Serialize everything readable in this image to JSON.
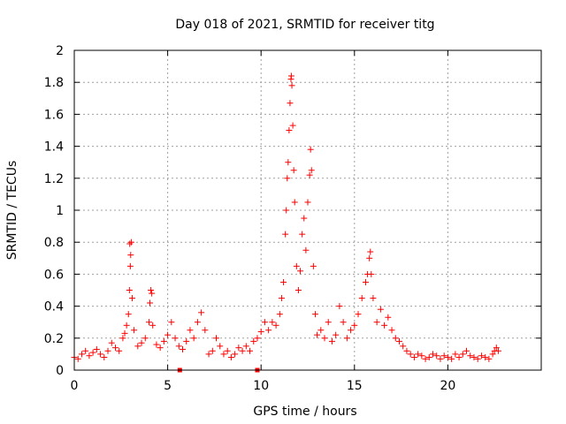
{
  "chart_data": {
    "type": "scatter",
    "title": "Day 018 of 2021, SRMTID for receiver titg",
    "xlabel": "GPS time / hours",
    "ylabel": "SRMTID / TECUs",
    "xlim": [
      0,
      25
    ],
    "ylim": [
      0,
      2
    ],
    "xticks": [
      0,
      5,
      10,
      15,
      20
    ],
    "xtick_labels": [
      "0",
      "5",
      "10",
      "15",
      "20"
    ],
    "yticks": [
      0,
      0.2,
      0.4,
      0.6,
      0.8,
      1,
      1.2,
      1.4,
      1.6,
      1.8,
      2
    ],
    "ytick_labels": [
      "0",
      "0.2",
      "0.4",
      "0.6",
      "0.8",
      "1",
      "1.2",
      "1.4",
      "1.6",
      "1.8",
      "2"
    ],
    "grid": true,
    "marker": "+",
    "color": "#ff0000",
    "baseline_markers_x": [
      5.65,
      9.8
    ],
    "series": [
      {
        "name": "SRMTID",
        "points": [
          [
            0.0,
            0.08
          ],
          [
            0.2,
            0.07
          ],
          [
            0.4,
            0.1
          ],
          [
            0.6,
            0.12
          ],
          [
            0.8,
            0.09
          ],
          [
            1.0,
            0.11
          ],
          [
            1.2,
            0.13
          ],
          [
            1.4,
            0.1
          ],
          [
            1.6,
            0.08
          ],
          [
            1.8,
            0.12
          ],
          [
            2.0,
            0.17
          ],
          [
            2.2,
            0.14
          ],
          [
            2.4,
            0.12
          ],
          [
            2.6,
            0.2
          ],
          [
            2.7,
            0.23
          ],
          [
            2.8,
            0.28
          ],
          [
            2.9,
            0.35
          ],
          [
            2.95,
            0.5
          ],
          [
            3.0,
            0.65
          ],
          [
            3.05,
            0.8
          ],
          [
            2.97,
            0.79
          ],
          [
            3.02,
            0.72
          ],
          [
            3.1,
            0.45
          ],
          [
            3.2,
            0.25
          ],
          [
            3.4,
            0.15
          ],
          [
            3.6,
            0.17
          ],
          [
            3.8,
            0.2
          ],
          [
            4.0,
            0.3
          ],
          [
            4.05,
            0.42
          ],
          [
            4.1,
            0.5
          ],
          [
            4.15,
            0.48
          ],
          [
            4.2,
            0.28
          ],
          [
            4.4,
            0.16
          ],
          [
            4.6,
            0.14
          ],
          [
            4.8,
            0.18
          ],
          [
            5.0,
            0.22
          ],
          [
            5.2,
            0.3
          ],
          [
            5.4,
            0.2
          ],
          [
            5.6,
            0.15
          ],
          [
            5.8,
            0.13
          ],
          [
            6.0,
            0.18
          ],
          [
            6.2,
            0.25
          ],
          [
            6.4,
            0.2
          ],
          [
            6.6,
            0.3
          ],
          [
            6.8,
            0.36
          ],
          [
            7.0,
            0.25
          ],
          [
            7.2,
            0.1
          ],
          [
            7.4,
            0.12
          ],
          [
            7.6,
            0.2
          ],
          [
            7.8,
            0.15
          ],
          [
            8.0,
            0.1
          ],
          [
            8.2,
            0.12
          ],
          [
            8.4,
            0.08
          ],
          [
            8.6,
            0.1
          ],
          [
            8.8,
            0.14
          ],
          [
            9.0,
            0.12
          ],
          [
            9.2,
            0.15
          ],
          [
            9.4,
            0.12
          ],
          [
            9.6,
            0.18
          ],
          [
            9.8,
            0.2
          ],
          [
            10.0,
            0.24
          ],
          [
            10.2,
            0.3
          ],
          [
            10.4,
            0.25
          ],
          [
            10.6,
            0.3
          ],
          [
            10.8,
            0.28
          ],
          [
            11.0,
            0.35
          ],
          [
            11.1,
            0.45
          ],
          [
            11.2,
            0.55
          ],
          [
            11.3,
            0.85
          ],
          [
            11.35,
            1.0
          ],
          [
            11.4,
            1.2
          ],
          [
            11.45,
            1.3
          ],
          [
            11.5,
            1.5
          ],
          [
            11.55,
            1.67
          ],
          [
            11.6,
            1.82
          ],
          [
            11.62,
            1.84
          ],
          [
            11.65,
            1.78
          ],
          [
            11.7,
            1.53
          ],
          [
            11.75,
            1.25
          ],
          [
            11.8,
            1.05
          ],
          [
            11.9,
            0.65
          ],
          [
            12.0,
            0.5
          ],
          [
            12.1,
            0.62
          ],
          [
            12.2,
            0.85
          ],
          [
            12.3,
            0.95
          ],
          [
            12.4,
            0.75
          ],
          [
            12.5,
            1.05
          ],
          [
            12.6,
            1.22
          ],
          [
            12.65,
            1.38
          ],
          [
            12.7,
            1.25
          ],
          [
            12.8,
            0.65
          ],
          [
            12.9,
            0.35
          ],
          [
            13.0,
            0.22
          ],
          [
            13.2,
            0.25
          ],
          [
            13.4,
            0.2
          ],
          [
            13.6,
            0.3
          ],
          [
            13.8,
            0.18
          ],
          [
            14.0,
            0.22
          ],
          [
            14.2,
            0.4
          ],
          [
            14.4,
            0.3
          ],
          [
            14.6,
            0.2
          ],
          [
            14.8,
            0.25
          ],
          [
            15.0,
            0.28
          ],
          [
            15.2,
            0.35
          ],
          [
            15.4,
            0.45
          ],
          [
            15.6,
            0.55
          ],
          [
            15.7,
            0.6
          ],
          [
            15.8,
            0.7
          ],
          [
            15.85,
            0.74
          ],
          [
            15.9,
            0.6
          ],
          [
            16.0,
            0.45
          ],
          [
            16.2,
            0.3
          ],
          [
            16.4,
            0.38
          ],
          [
            16.6,
            0.28
          ],
          [
            16.8,
            0.33
          ],
          [
            17.0,
            0.25
          ],
          [
            17.2,
            0.2
          ],
          [
            17.4,
            0.18
          ],
          [
            17.6,
            0.15
          ],
          [
            17.8,
            0.12
          ],
          [
            18.0,
            0.1
          ],
          [
            18.2,
            0.08
          ],
          [
            18.4,
            0.1
          ],
          [
            18.6,
            0.09
          ],
          [
            18.8,
            0.07
          ],
          [
            19.0,
            0.08
          ],
          [
            19.2,
            0.1
          ],
          [
            19.4,
            0.09
          ],
          [
            19.6,
            0.07
          ],
          [
            19.8,
            0.09
          ],
          [
            20.0,
            0.08
          ],
          [
            20.2,
            0.07
          ],
          [
            20.4,
            0.1
          ],
          [
            20.6,
            0.08
          ],
          [
            20.8,
            0.1
          ],
          [
            21.0,
            0.12
          ],
          [
            21.2,
            0.09
          ],
          [
            21.4,
            0.08
          ],
          [
            21.6,
            0.07
          ],
          [
            21.8,
            0.09
          ],
          [
            22.0,
            0.08
          ],
          [
            22.2,
            0.07
          ],
          [
            22.4,
            0.1
          ],
          [
            22.5,
            0.12
          ],
          [
            22.6,
            0.14
          ],
          [
            22.7,
            0.12
          ]
        ]
      }
    ]
  }
}
